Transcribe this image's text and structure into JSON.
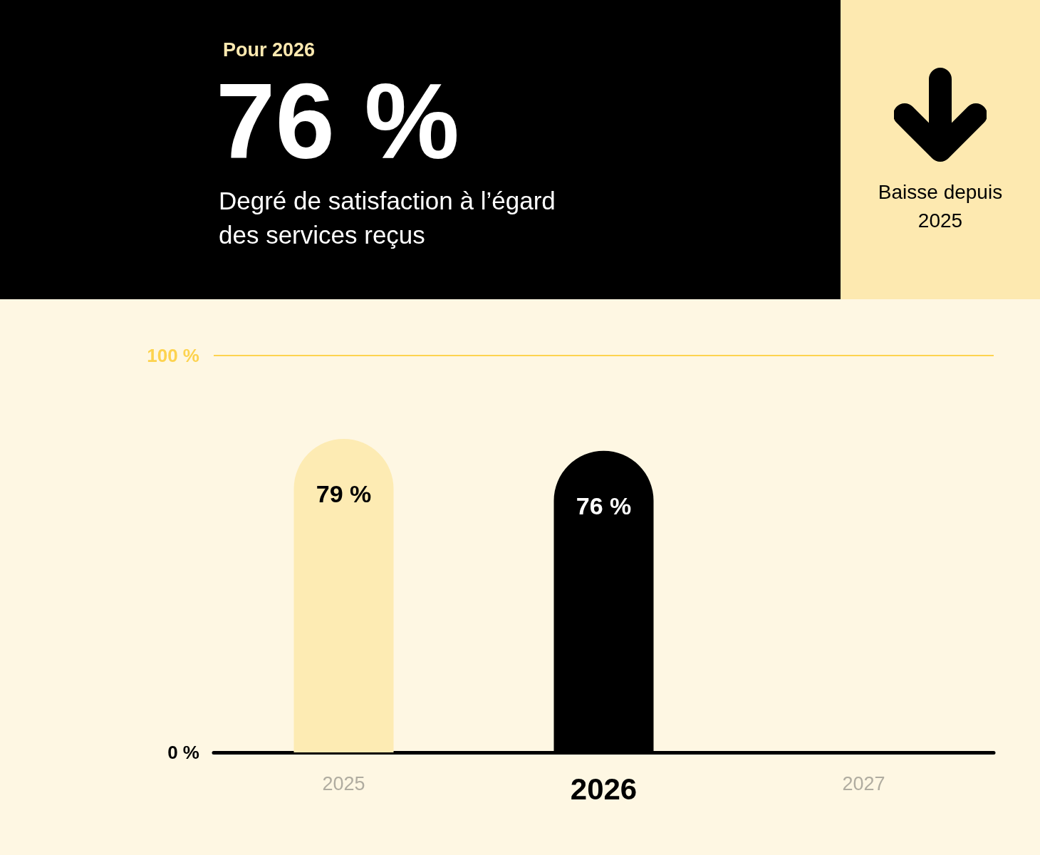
{
  "chart_data": {
    "type": "bar",
    "title": "76 %",
    "subtitle": "Degré de satisfaction à l’égard des services reçus",
    "annotations": [
      "Pour 2026",
      "Baisse depuis 2025"
    ],
    "categories": [
      "2025",
      "2026",
      "2027"
    ],
    "values": [
      79,
      76,
      null
    ],
    "colors": [
      "#fdebb3",
      "#000000",
      "#fdebb3"
    ],
    "value_labels": [
      "79 %",
      "76 %",
      null
    ],
    "ylim": [
      0,
      100
    ],
    "yticks": [
      {
        "value": 0,
        "label": "0 %"
      },
      {
        "value": 100,
        "label": "100 %"
      }
    ],
    "ref_lines": [
      {
        "axis": "y",
        "value": 100,
        "color": "#fdd34f",
        "line_style": "solid"
      }
    ]
  }
}
